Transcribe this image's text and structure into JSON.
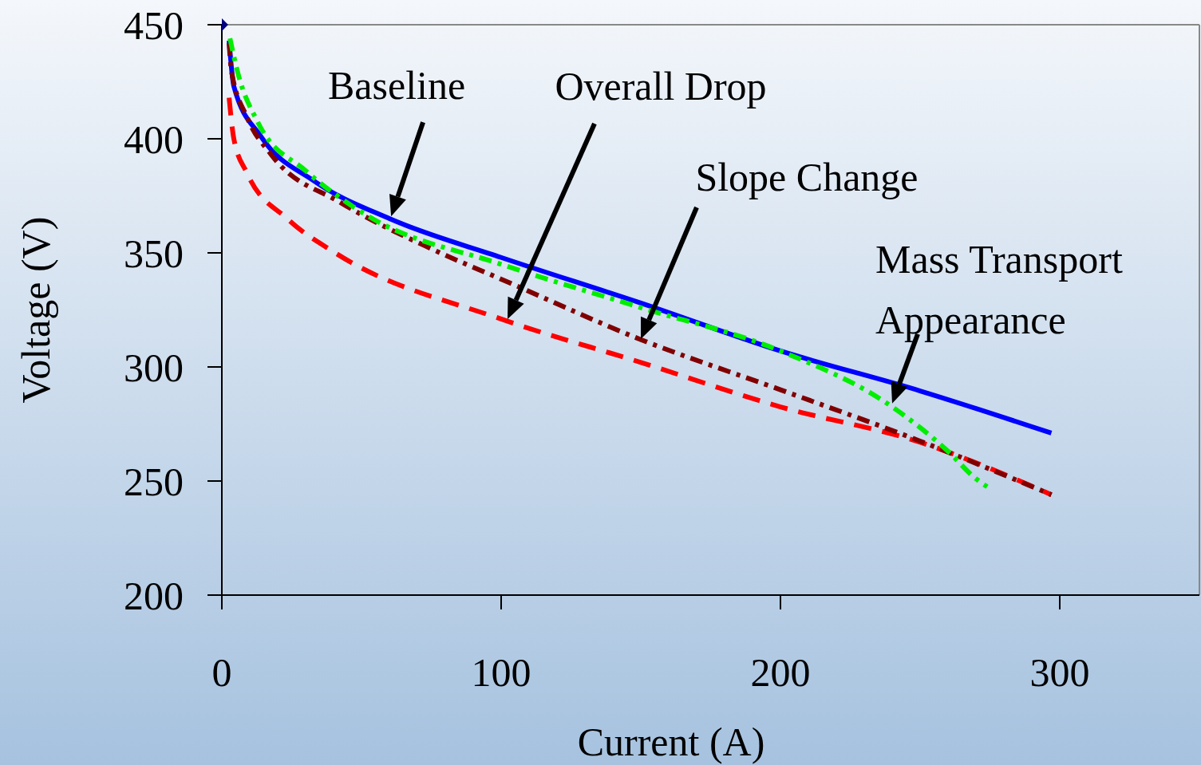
{
  "chart_data": {
    "type": "line",
    "xlabel": "Current (A)",
    "ylabel": "Voltage (V)",
    "xlim": [
      0,
      350
    ],
    "ylim": [
      200,
      450
    ],
    "xticks": [
      0,
      100,
      200,
      300
    ],
    "yticks": [
      200,
      250,
      300,
      350,
      400,
      450
    ],
    "grid": false,
    "series": [
      {
        "color": "#0000ff",
        "line_style": "solid",
        "x": [
          2.6,
          4.3,
          14,
          33,
          60,
          100,
          150,
          200,
          250,
          297
        ],
        "values": [
          443,
          423,
          401,
          381.5,
          365,
          348,
          328,
          307,
          289.5,
          271
        ]
      },
      {
        "color": "#ff0000",
        "line_style": "dashed",
        "x": [
          2.6,
          4.3,
          9,
          23.4,
          40.6,
          100,
          150,
          200,
          250,
          297
        ],
        "values": [
          418,
          400,
          385,
          365,
          350,
          321,
          302,
          282.5,
          267,
          244
        ]
      },
      {
        "color": "#800000",
        "line_style": "dashdot",
        "x": [
          2.6,
          3.4,
          9,
          17.7,
          42.6,
          75.7,
          100,
          150,
          200,
          250,
          297
        ],
        "values": [
          442,
          430,
          409.5,
          393,
          372,
          351.4,
          338.5,
          312,
          290,
          267.5,
          244
        ]
      },
      {
        "color": "#00ee00",
        "line_style": "dashdot",
        "x": [
          2.9,
          5.7,
          13,
          30,
          52,
          100,
          150,
          200,
          240,
          260,
          270,
          274
        ],
        "values": [
          444,
          429,
          407,
          386,
          366.4,
          345,
          326,
          307,
          282.5,
          263,
          251,
          247.5
        ]
      },
      {
        "color": "#000080",
        "type": "scatter",
        "marker": "diamond",
        "x": [
          0
        ],
        "values": [
          450
        ]
      }
    ],
    "annotations": [
      {
        "text": "Baseline",
        "x": 60.6,
        "y": 366
      },
      "Overall Drop",
      "Slope Change",
      {
        "text": "Mass Transport\nAppearance",
        "x": 240,
        "y": 284
      }
    ]
  }
}
